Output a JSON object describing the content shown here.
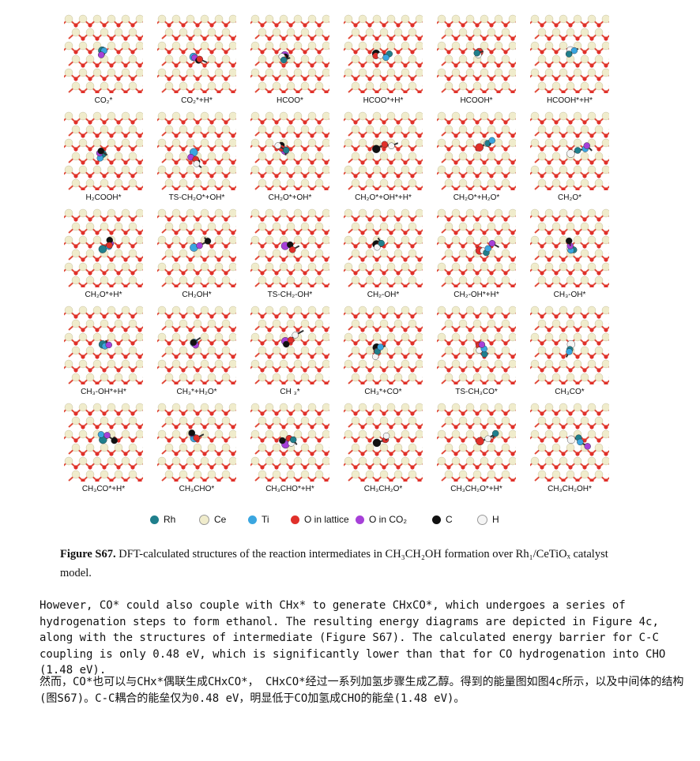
{
  "figure": {
    "panels": [
      {
        "label": "CO₂*"
      },
      {
        "label": "CO₂*+H*"
      },
      {
        "label": "HCOO*"
      },
      {
        "label": "HCOO*+H*"
      },
      {
        "label": "HCOOH*"
      },
      {
        "label": "HCOOH*+H*"
      },
      {
        "label": "H₂COOH*"
      },
      {
        "label": "TS-CH₂O*+OH*"
      },
      {
        "label": "CH₂O*+OH*"
      },
      {
        "label": "CH₂O*+OH*+H*"
      },
      {
        "label": "CH₂O*+H₂O*"
      },
      {
        "label": "CH₂O*"
      },
      {
        "label": "CH₂O*+H*"
      },
      {
        "label": "CH₂OH*"
      },
      {
        "label": "TS-CH₂-OH*"
      },
      {
        "label": "CH₂-OH*"
      },
      {
        "label": "CH₂-OH*+H*"
      },
      {
        "label": "CH₃-OH*"
      },
      {
        "label": "CH₃-OH*+H*"
      },
      {
        "label": "CH₃*+H₂O*"
      },
      {
        "label": "CH ₃*"
      },
      {
        "label": "CH₃*+CO*"
      },
      {
        "label": "TS-CH₃CO*"
      },
      {
        "label": "CH₃CO*"
      },
      {
        "label": "CH₃CO*+H*"
      },
      {
        "label": "CH₃CHO*"
      },
      {
        "label": "CH₃CHO*+H*"
      },
      {
        "label": "CH₃CH₂O*"
      },
      {
        "label": "CH₃CH₂O*+H*"
      },
      {
        "label": "CH₃CH₂OH*"
      }
    ],
    "legend": [
      {
        "label": "Rh",
        "color": "#1f7f8c"
      },
      {
        "label": "Ce",
        "color": "#f0eccc"
      },
      {
        "label": "Ti",
        "color": "#3aa6e0"
      },
      {
        "label": "O in lattice",
        "color": "#e0302a"
      },
      {
        "label": "O in CO₂",
        "color": "#a640d8"
      },
      {
        "label": "C",
        "color": "#111111"
      },
      {
        "label": "H",
        "color": "#f5f5f5"
      }
    ],
    "colors": {
      "lattice_oxygen": "#e0302a",
      "bond": "#e04b3a",
      "cerium": "#f0eccc"
    }
  },
  "caption": {
    "head": "Figure S67.",
    "text": " DFT-calculated structures of the reaction intermediates in CH₃CH₂OH formation over Rh₁/CeTiOₓ catalyst model."
  },
  "body": {
    "english": "However, CO* could also couple with CHx* to generate CHxCO*, which undergoes a series of hydrogenation steps to form ethanol. The resulting energy diagrams are depicted in Figure 4c, along with the structures of intermediate (Figure S67). The calculated energy barrier for C-C coupling is only 0.48 eV, which is significantly lower than that for CO hydrogenation into CHO (1.48 eV).",
    "chinese": "然而，CO*也可以与CHx*偶联生成CHxCO*， CHxCO*经过一系列加氢步骤生成乙醇。得到的能量图如图4c所示，以及中间体的结构(图S67)。C-C耦合的能垒仅为0.48 eV，明显低于CO加氢成CHO的能垒(1.48 eV)。"
  }
}
